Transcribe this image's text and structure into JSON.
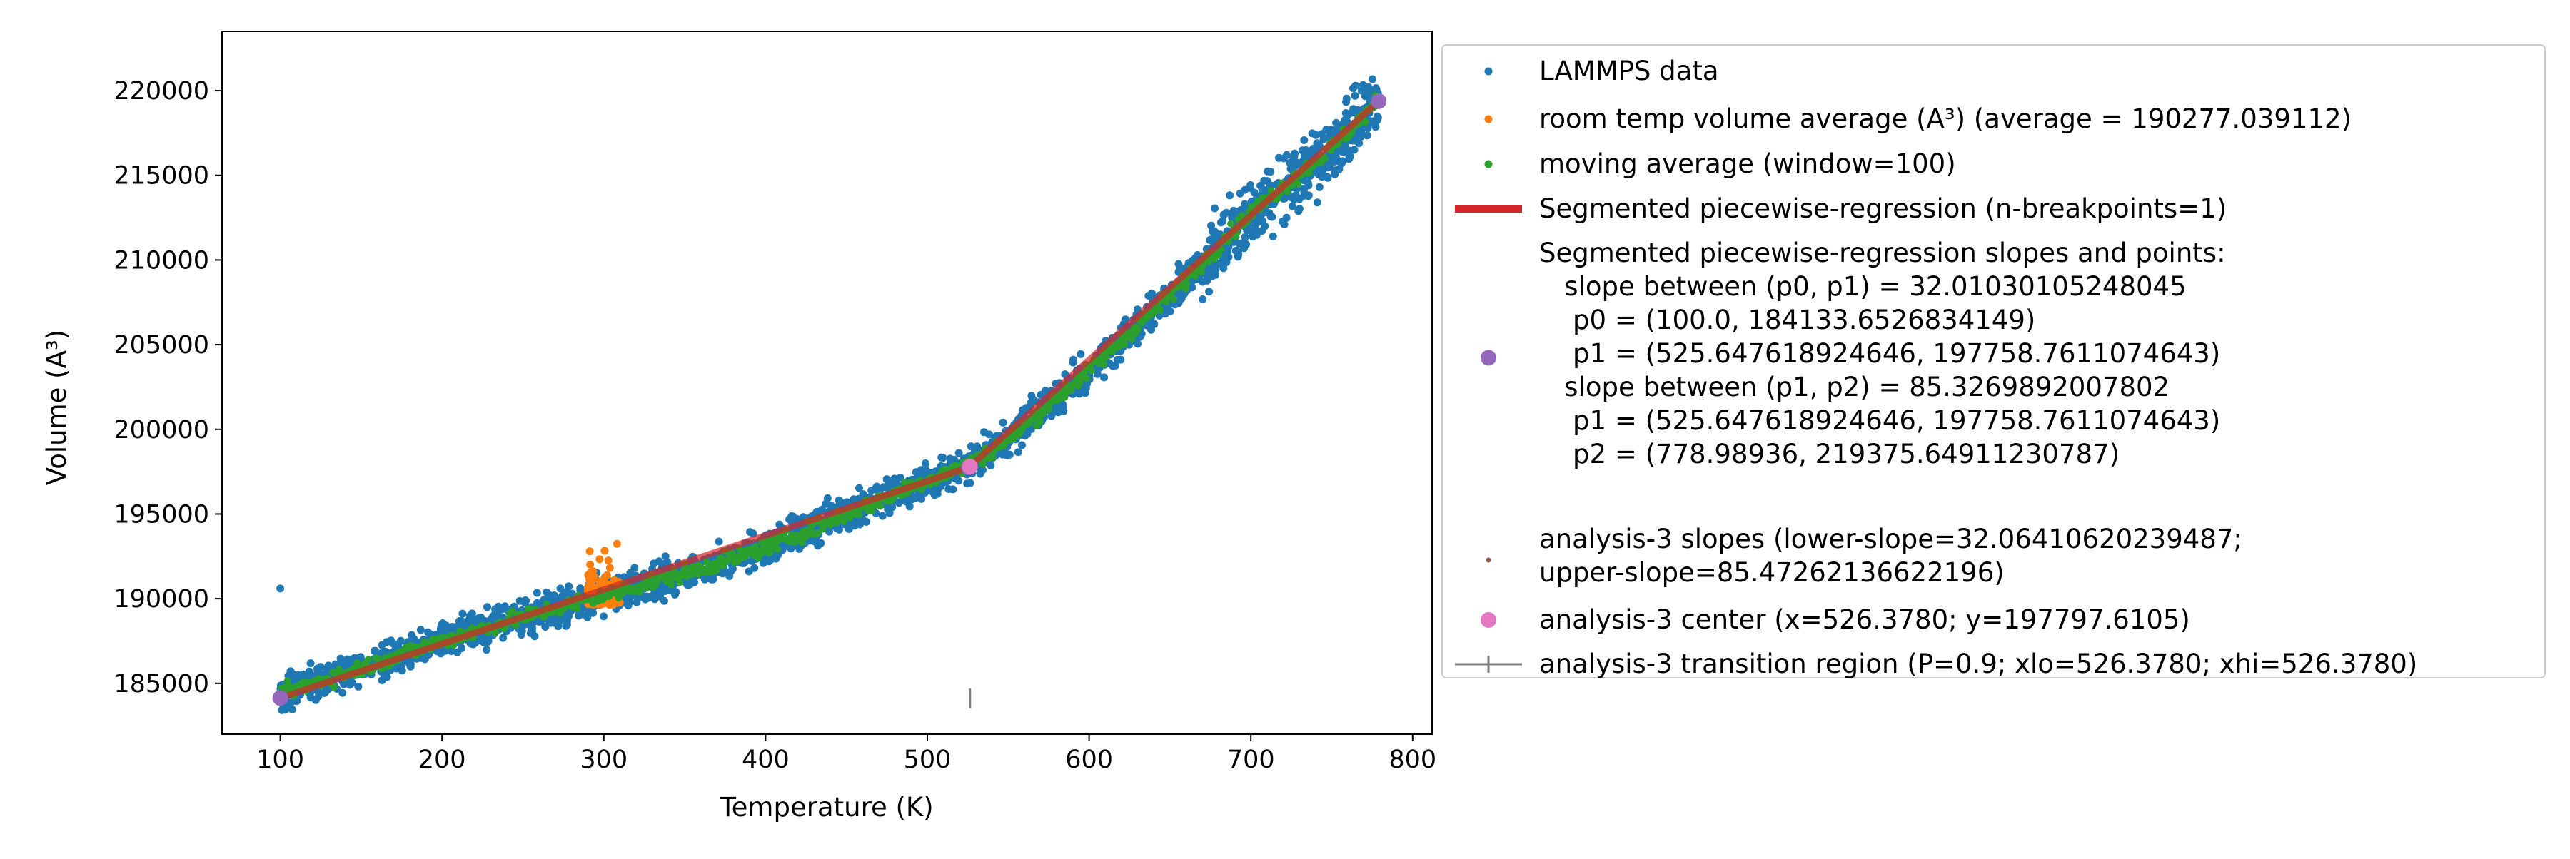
{
  "chart_data": {
    "type": "scatter",
    "title": "",
    "xlabel": "Temperature (K)",
    "ylabel": "Volume (A³)",
    "xlim": [
      64,
      812
    ],
    "ylim": [
      182000,
      223500
    ],
    "x_ticks": [
      100,
      200,
      300,
      400,
      500,
      600,
      700,
      800
    ],
    "y_ticks": [
      185000,
      190000,
      195000,
      200000,
      205000,
      210000,
      215000,
      220000
    ],
    "grid": false,
    "legend_position": "right, outside plot",
    "colors": {
      "lammps": "#1f77b4",
      "room_temp": "#ff7f0e",
      "moving_avg": "#2ca02c",
      "segmented_line": "#d62728",
      "segmented_points": "#9467bd",
      "analysis_slopes": "#8c564b",
      "analysis_center": "#e377c2",
      "transition": "#7f7f7f"
    },
    "series": [
      {
        "name": "LAMMPS data",
        "style": "points",
        "scatter_band": {
          "x_range": [
            100,
            779
          ],
          "spread": 900,
          "high_spread_region": [
            670,
            779
          ],
          "high_spread": 1800
        },
        "outliers": [
          [
            100,
            190600
          ]
        ]
      },
      {
        "name": "room temp volume average (A³) (average = 190277.039112)",
        "style": "points",
        "x_range": [
          290,
          310
        ],
        "y_range": [
          189200,
          193800
        ],
        "mean": 190277.039112
      },
      {
        "name": "moving average (window=100)",
        "style": "line-points",
        "x": [
          100,
          150,
          200,
          250,
          300,
          350,
          400,
          450,
          500,
          525.65,
          550,
          600,
          650,
          700,
          750,
          779
        ],
        "y": [
          184400,
          185900,
          187500,
          188900,
          190200,
          191500,
          193000,
          195000,
          197000,
          197900,
          199400,
          203500,
          207900,
          212800,
          216600,
          219400
        ]
      },
      {
        "name": "Segmented piecewise-regression (n-breakpoints=1)",
        "style": "line",
        "x": [
          100.0,
          525.647618924646,
          778.98936
        ],
        "y": [
          184133.6526834149,
          197758.7611074643,
          219375.64911230787
        ]
      },
      {
        "name": "Segmented piecewise-regression slopes and points:",
        "style": "points",
        "x": [
          100.0,
          525.647618924646,
          778.98936
        ],
        "y": [
          184133.6526834149,
          197758.7611074643,
          219375.64911230787
        ]
      },
      {
        "name": "analysis-3 center (x=526.3780; y=197797.6105)",
        "style": "point",
        "x": [
          526.378
        ],
        "y": [
          197797.6105
        ]
      },
      {
        "name": "analysis-3 transition region (P=0.9; xlo=526.3780; xhi=526.3780)",
        "style": "errorbar",
        "x": [
          526.378
        ],
        "y": [
          184100
        ]
      }
    ],
    "legend": [
      {
        "marker": "dot",
        "color": "#1f77b4",
        "lines": [
          "LAMMPS data"
        ]
      },
      {
        "marker": "dot",
        "color": "#ff7f0e",
        "lines": [
          "room temp volume average (A³) (average = 190277.039112)"
        ]
      },
      {
        "marker": "dot",
        "color": "#2ca02c",
        "lines": [
          "moving average (window=100)"
        ]
      },
      {
        "marker": "line",
        "color": "#d62728",
        "lines": [
          "Segmented piecewise-regression (n-breakpoints=1)"
        ]
      },
      {
        "marker": "dot-large",
        "color": "#9467bd",
        "lines": [
          "Segmented piecewise-regression slopes and points:",
          "   slope between (p0, p1) = 32.01030105248045",
          "    p0 = (100.0, 184133.6526834149)",
          "    p1 = (525.647618924646, 197758.7611074643)",
          "   slope between (p1, p2) = 85.3269892007802",
          "    p1 = (525.647618924646, 197758.7611074643)",
          "    p2 = (778.98936, 219375.64911230787)"
        ]
      },
      {
        "marker": "tiny-dot",
        "color": "#8c564b",
        "lines": [
          "analysis-3 slopes (lower-slope=32.06410620239487;",
          "upper-slope=85.47262136622196)"
        ]
      },
      {
        "marker": "dot-large",
        "color": "#e377c2",
        "lines": [
          "analysis-3 center (x=526.3780; y=197797.6105)"
        ]
      },
      {
        "marker": "errorbar",
        "color": "#7f7f7f",
        "lines": [
          "analysis-3 transition region (P=0.9; xlo=526.3780; xhi=526.3780)"
        ]
      }
    ]
  }
}
